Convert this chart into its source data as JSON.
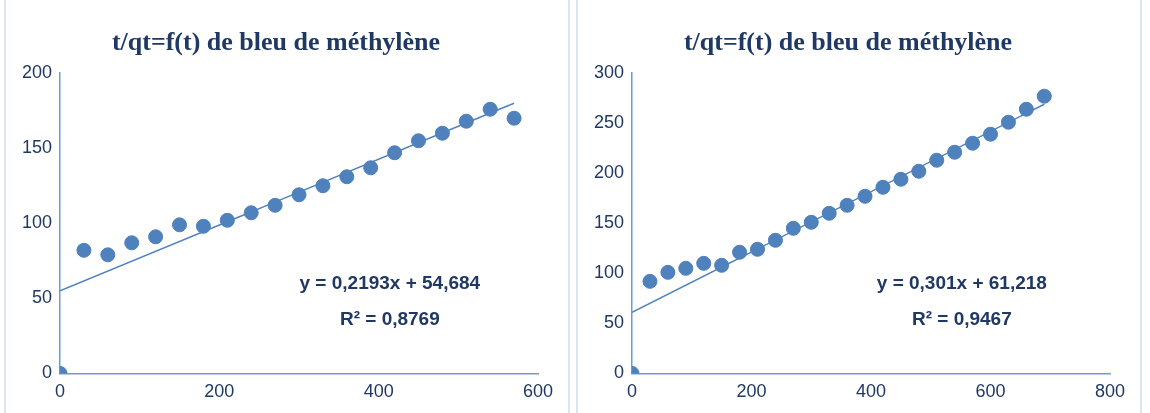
{
  "chart_data": [
    {
      "type": "scatter",
      "title": "t/qt=f(t) de bleu de méthylène",
      "legend": false,
      "grid": false,
      "xlim": [
        0,
        600
      ],
      "xticks": [
        0,
        200,
        400,
        600
      ],
      "ylim": [
        0,
        200
      ],
      "yticks": [
        0,
        50,
        100,
        150,
        200
      ],
      "annotations": [
        "y = 0,2193x + 54,684",
        "R² = 0,8769"
      ],
      "series": [
        {
          "type": "scatter",
          "marker": "circle",
          "color": "#4f81bd",
          "x": [
            0,
            30,
            60,
            90,
            120,
            150,
            180,
            210,
            240,
            270,
            300,
            330,
            360,
            390,
            420,
            450,
            480,
            510,
            540,
            570
          ],
          "values": [
            0,
            82,
            79,
            87,
            91,
            99,
            98,
            102,
            107,
            112,
            119,
            125,
            131,
            137,
            147,
            155,
            160,
            168,
            176,
            170
          ]
        },
        {
          "type": "line",
          "marker": "none",
          "color": "#4f81bd",
          "line_style": "solid",
          "x": [
            0,
            570
          ],
          "values": [
            55,
            180
          ]
        }
      ]
    },
    {
      "type": "scatter",
      "title": "t/qt=f(t) de bleu de méthylène",
      "legend": false,
      "grid": false,
      "xlim": [
        0,
        800
      ],
      "xticks": [
        0,
        200,
        400,
        600,
        800
      ],
      "ylim": [
        0,
        300
      ],
      "yticks": [
        0,
        50,
        100,
        150,
        200,
        250,
        300
      ],
      "annotations": [
        "y = 0,301x + 61,218",
        "R² = 0,9467"
      ],
      "series": [
        {
          "type": "scatter",
          "marker": "circle",
          "color": "#4f81bd",
          "x": [
            0,
            30,
            60,
            90,
            120,
            150,
            180,
            210,
            240,
            270,
            300,
            330,
            360,
            390,
            420,
            450,
            480,
            510,
            540,
            570,
            600,
            630,
            660,
            690
          ],
          "values": [
            0,
            92,
            101,
            105,
            110,
            108,
            121,
            124,
            133,
            145,
            151,
            160,
            168,
            177,
            186,
            194,
            202,
            213,
            221,
            230,
            239,
            251,
            264,
            277
          ]
        },
        {
          "type": "line",
          "marker": "none",
          "color": "#4f81bd",
          "line_style": "solid",
          "x": [
            0,
            690
          ],
          "values": [
            61,
            269
          ]
        }
      ]
    }
  ]
}
